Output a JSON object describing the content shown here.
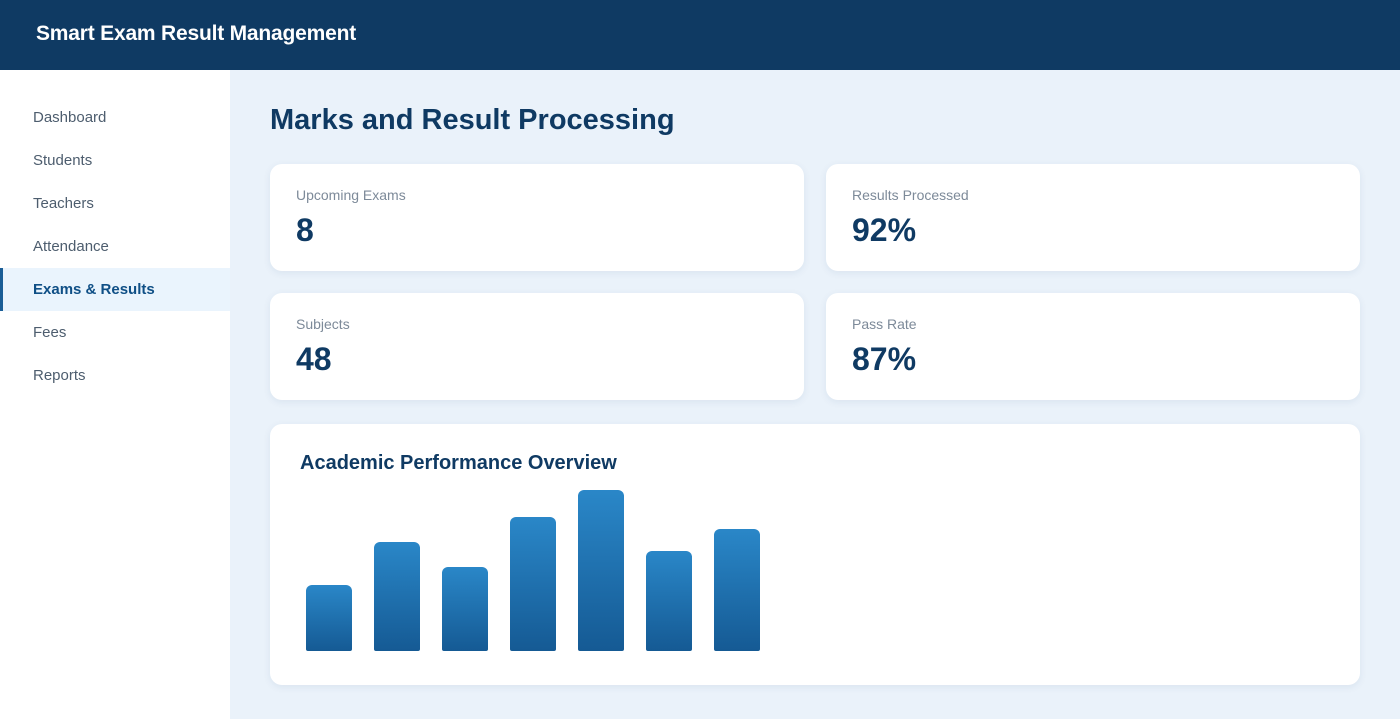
{
  "header": {
    "title": "Smart Exam Result Management"
  },
  "sidebar": {
    "items": [
      {
        "label": "Dashboard",
        "active": false
      },
      {
        "label": "Students",
        "active": false
      },
      {
        "label": "Teachers",
        "active": false
      },
      {
        "label": "Attendance",
        "active": false
      },
      {
        "label": "Exams & Results",
        "active": true
      },
      {
        "label": "Fees",
        "active": false
      },
      {
        "label": "Reports",
        "active": false
      }
    ]
  },
  "main": {
    "page_title": "Marks and Result Processing",
    "stats": [
      {
        "label": "Upcoming Exams",
        "value": "8"
      },
      {
        "label": "Results Processed",
        "value": "92%"
      },
      {
        "label": "Subjects",
        "value": "48"
      },
      {
        "label": "Pass Rate",
        "value": "87%"
      }
    ],
    "chart_title": "Academic Performance Overview"
  },
  "chart_data": {
    "type": "bar",
    "title": "Academic Performance Overview",
    "values": [
      58,
      96,
      74,
      118,
      142,
      88,
      108
    ],
    "ylim": [
      0,
      150
    ]
  },
  "colors": {
    "header_bg": "#0f3a63",
    "accent": "#1a5d96",
    "bar_top": "#2a87c8",
    "bar_bottom": "#155a94"
  }
}
